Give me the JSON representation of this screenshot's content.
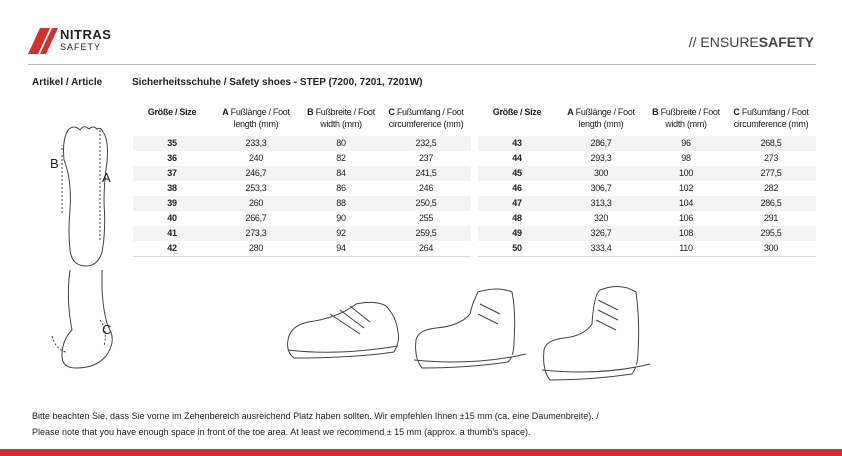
{
  "header": {
    "logo": {
      "brand": "NITRAS",
      "sub": "SAFETY"
    },
    "tagline": {
      "prefix": "// ENSURE",
      "bold": "SAFETY"
    }
  },
  "article": {
    "label": "Artikel / Article",
    "product": "Sicherheitsschuhe / Safety shoes - STEP (7200, 7201, 7201W)"
  },
  "tables": [
    {
      "columns": [
        {
          "line1": "Größe / Size"
        },
        {
          "letter": "A",
          "line1": " Fußlänge / Foot",
          "line2": "length (mm)"
        },
        {
          "letter": "B",
          "line1": " Fußbreite / Foot",
          "line2": "width (mm)"
        },
        {
          "letter": "C",
          "line1": " Fußumfang / Foot",
          "line2": "circumference (mm)"
        }
      ],
      "rows": [
        [
          "35",
          "233,3",
          "80",
          "232,5"
        ],
        [
          "36",
          "240",
          "82",
          "237"
        ],
        [
          "37",
          "246,7",
          "84",
          "241,5"
        ],
        [
          "38",
          "253,3",
          "86",
          "246"
        ],
        [
          "39",
          "260",
          "88",
          "250,5"
        ],
        [
          "40",
          "266,7",
          "90",
          "255"
        ],
        [
          "41",
          "273,3",
          "92",
          "259,5"
        ],
        [
          "42",
          "280",
          "94",
          "264"
        ]
      ]
    },
    {
      "columns": [
        {
          "line1": "Größe / Size"
        },
        {
          "letter": "A",
          "line1": " Fußlänge / Foot",
          "line2": "length (mm)"
        },
        {
          "letter": "B",
          "line1": " Fußbreite / Foot",
          "line2": "width (mm)"
        },
        {
          "letter": "C",
          "line1": " Fußumfang / Foot",
          "line2": "circumference (mm)"
        }
      ],
      "rows": [
        [
          "43",
          "286,7",
          "96",
          "268,5"
        ],
        [
          "44",
          "293,3",
          "98",
          "273"
        ],
        [
          "45",
          "300",
          "100",
          "277,5"
        ],
        [
          "46",
          "306,7",
          "102",
          "282"
        ],
        [
          "47",
          "313,3",
          "104",
          "286,5"
        ],
        [
          "48",
          "320",
          "106",
          "291"
        ],
        [
          "49",
          "326,7",
          "108",
          "295,5"
        ],
        [
          "50",
          "333,4",
          "110",
          "300"
        ]
      ]
    }
  ],
  "diagram": {
    "labels": [
      "B",
      "A",
      "C"
    ]
  },
  "note": [
    "Bitte beachten Sie, dass Sie vorne im Zehenbereich ausreichend Platz haben sollten. Wir empfehlen Ihnen ±15 mm (ca. eine Daumenbreite). /",
    "Please note that you have enough space in front of the toe area. At least we recommend ± 15 mm (approx. a thumb’s space)."
  ]
}
